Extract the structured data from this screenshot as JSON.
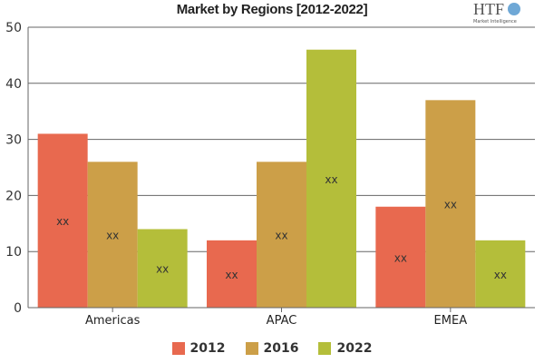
{
  "chart_data": {
    "type": "bar",
    "title": "Market by Regions [2012-2022]",
    "categories": [
      "Americas",
      "APAC",
      "EMEA"
    ],
    "series": [
      {
        "name": "2012",
        "color": "#e8694f",
        "values": [
          31,
          12,
          18
        ]
      },
      {
        "name": "2016",
        "color": "#cc9f48",
        "values": [
          26,
          26,
          37
        ]
      },
      {
        "name": "2022",
        "color": "#b4be3a",
        "values": [
          14,
          46,
          12
        ]
      }
    ],
    "data_label": "xx",
    "ylim": [
      0,
      50
    ],
    "yticks": [
      0,
      10,
      20,
      30,
      40,
      50
    ],
    "grid": true,
    "legend": "bottom",
    "xlabel": "",
    "ylabel": ""
  },
  "logo": {
    "text": "HTF",
    "subtext": "Market Intelligence"
  }
}
